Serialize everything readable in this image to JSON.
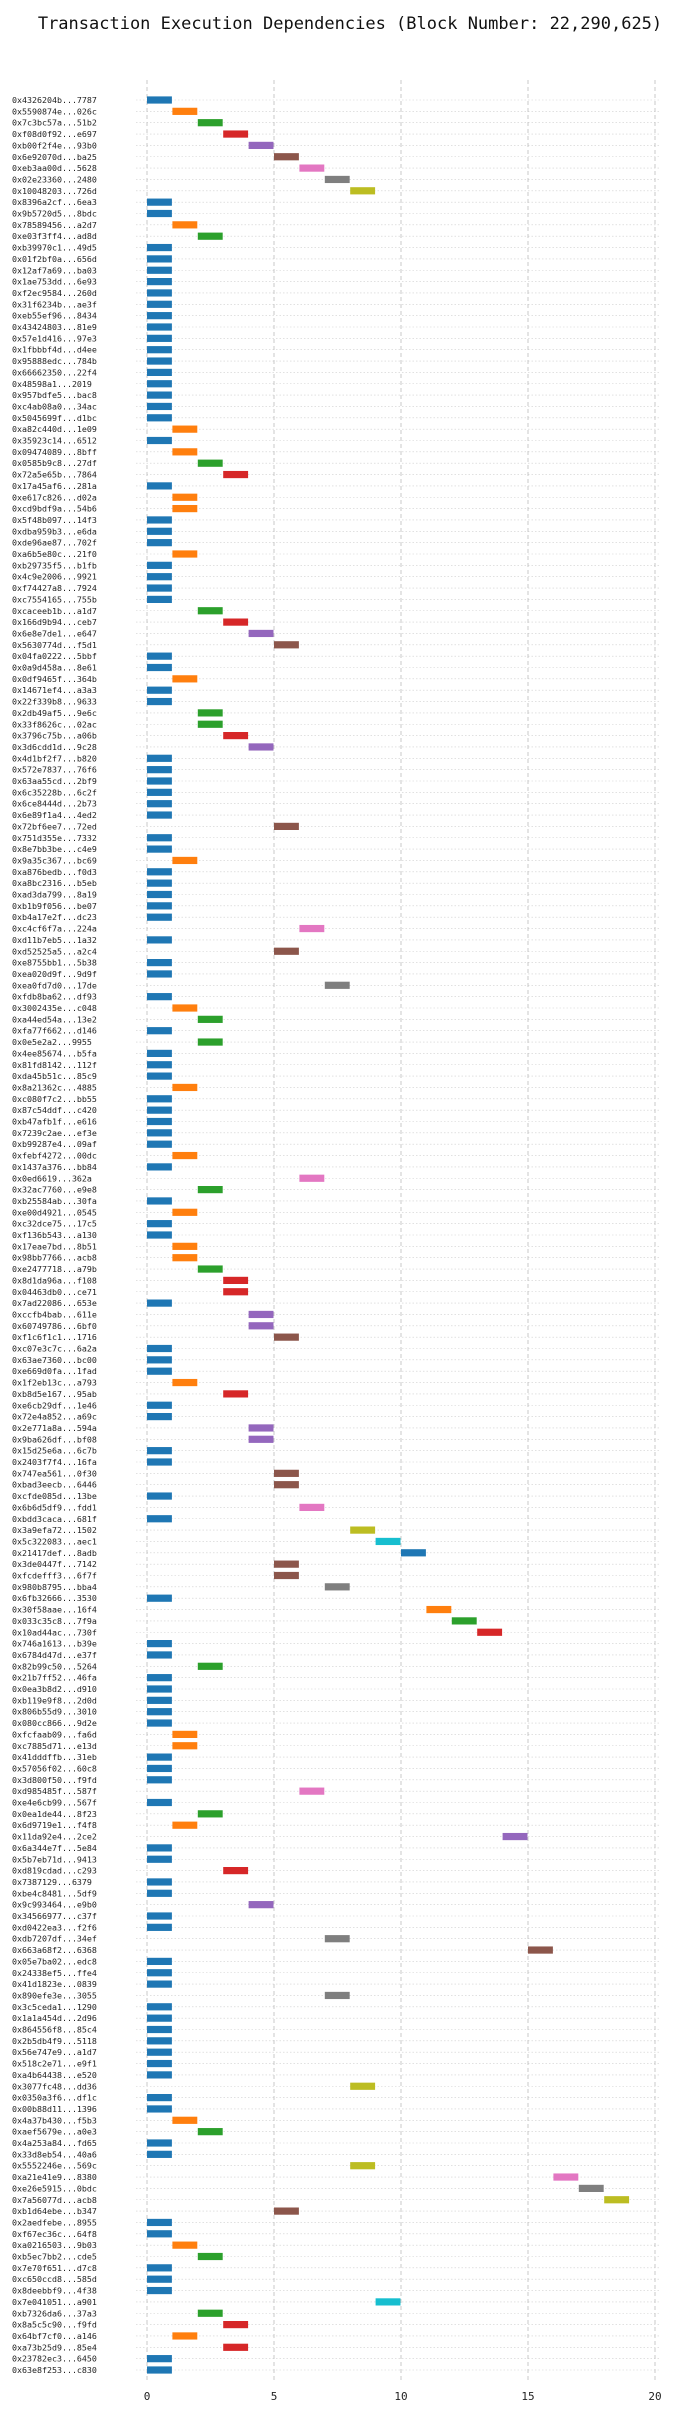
{
  "chart_data": {
    "type": "bar",
    "orientation": "horizontal",
    "title": "Transaction Execution Dependencies (Block Number: 22,290,625)",
    "xlabel": "",
    "ylabel": "",
    "xlim": [
      -0.5,
      20
    ],
    "xticks": [
      0,
      5,
      10,
      15,
      20
    ],
    "grid": "dashed vertical, dotted horizontal",
    "legend": "none",
    "palette": [
      "#1f77b4",
      "#ff7f0e",
      "#2ca02c",
      "#d62728",
      "#9467bd",
      "#8c564b",
      "#e377c2",
      "#7f7f7f",
      "#bcbd22",
      "#17becf"
    ],
    "transactions": [
      {
        "label": "0x4326204b...7787",
        "start": 0
      },
      {
        "label": "0x5590874e...026c",
        "start": 1
      },
      {
        "label": "0x7c3bc57a...51b2",
        "start": 2
      },
      {
        "label": "0xf08d0f92...e697",
        "start": 3
      },
      {
        "label": "0xb00f2f4e...93b0",
        "start": 4
      },
      {
        "label": "0x6e92070d...ba25",
        "start": 5
      },
      {
        "label": "0xeb3aa00d...5628",
        "start": 6
      },
      {
        "label": "0x02e23360...2480",
        "start": 7
      },
      {
        "label": "0x10048203...726d",
        "start": 8
      },
      {
        "label": "0x8396a2cf...6ea3",
        "start": 0
      },
      {
        "label": "0x9b5720d5...8bdc",
        "start": 0
      },
      {
        "label": "0x78589456...a2d7",
        "start": 1
      },
      {
        "label": "0xe03f3ff4...ad8d",
        "start": 2
      },
      {
        "label": "0xb39970c1...49d5",
        "start": 0
      },
      {
        "label": "0x01f2bf0a...656d",
        "start": 0
      },
      {
        "label": "0x12af7a69...ba03",
        "start": 0
      },
      {
        "label": "0x1ae753dd...6e93",
        "start": 0
      },
      {
        "label": "0xf2ec9584...260d",
        "start": 0
      },
      {
        "label": "0x31f6234b...ae3f",
        "start": 0
      },
      {
        "label": "0xeb55ef96...8434",
        "start": 0
      },
      {
        "label": "0x43424803...81e9",
        "start": 0
      },
      {
        "label": "0x57e1d416...97e3",
        "start": 0
      },
      {
        "label": "0x1fbbbf4d...d4ee",
        "start": 0
      },
      {
        "label": "0x95888edc...784b",
        "start": 0
      },
      {
        "label": "0x66662350...22f4",
        "start": 0
      },
      {
        "label": "0x48598a1...2019",
        "start": 0
      },
      {
        "label": "0x957bdfe5...bac8",
        "start": 0
      },
      {
        "label": "0xc4ab08a0...34ac",
        "start": 0
      },
      {
        "label": "0x5045699f...d1bc",
        "start": 0
      },
      {
        "label": "0xa82c440d...1e09",
        "start": 1
      },
      {
        "label": "0x35923c14...6512",
        "start": 0
      },
      {
        "label": "0x09474089...8bff",
        "start": 1
      },
      {
        "label": "0x0585b9c8...27df",
        "start": 2
      },
      {
        "label": "0x72a5e65b...7864",
        "start": 3
      },
      {
        "label": "0x17a45af6...281a",
        "start": 0
      },
      {
        "label": "0xe617c826...d02a",
        "start": 1
      },
      {
        "label": "0xcd9bdf9a...54b6",
        "start": 1
      },
      {
        "label": "0x5f48b097...14f3",
        "start": 0
      },
      {
        "label": "0xdba959b3...e6da",
        "start": 0
      },
      {
        "label": "0xde96ae87...702f",
        "start": 0
      },
      {
        "label": "0xa6b5e80c...21f0",
        "start": 1
      },
      {
        "label": "0xb29735f5...b1fb",
        "start": 0
      },
      {
        "label": "0x4c9e2006...9921",
        "start": 0
      },
      {
        "label": "0xf74427a8...7924",
        "start": 0
      },
      {
        "label": "0xc7554165...755b",
        "start": 0
      },
      {
        "label": "0xcaceeb1b...a1d7",
        "start": 2
      },
      {
        "label": "0x166d9b94...ceb7",
        "start": 3
      },
      {
        "label": "0x6e8e7de1...e647",
        "start": 4
      },
      {
        "label": "0x5630774d...f5d1",
        "start": 5
      },
      {
        "label": "0x04fa0222...5bbf",
        "start": 0
      },
      {
        "label": "0x0a9d458a...8e61",
        "start": 0
      },
      {
        "label": "0x0df9465f...364b",
        "start": 1
      },
      {
        "label": "0x14671ef4...a3a3",
        "start": 0
      },
      {
        "label": "0x22f339b8...9633",
        "start": 0
      },
      {
        "label": "0x2db49af5...9e6c",
        "start": 2
      },
      {
        "label": "0x33f8626c...02ac",
        "start": 2
      },
      {
        "label": "0x3796c75b...a06b",
        "start": 3
      },
      {
        "label": "0x3d6cdd1d...9c28",
        "start": 4
      },
      {
        "label": "0x4d1bf2f7...b820",
        "start": 0
      },
      {
        "label": "0x572e7837...76f6",
        "start": 0
      },
      {
        "label": "0x63aa55cd...2bf9",
        "start": 0
      },
      {
        "label": "0x6c35228b...6c2f",
        "start": 0
      },
      {
        "label": "0x6ce8444d...2b73",
        "start": 0
      },
      {
        "label": "0x6e89f1a4...4ed2",
        "start": 0
      },
      {
        "label": "0x72bf6ee7...72ed",
        "start": 5
      },
      {
        "label": "0x751d355e...7332",
        "start": 0
      },
      {
        "label": "0x8e7bb3be...c4e9",
        "start": 0
      },
      {
        "label": "0x9a35c367...bc69",
        "start": 1
      },
      {
        "label": "0xa876bedb...f0d3",
        "start": 0
      },
      {
        "label": "0xa8bc2316...b5eb",
        "start": 0
      },
      {
        "label": "0xad3da799...8a19",
        "start": 0
      },
      {
        "label": "0xb1b9f056...be07",
        "start": 0
      },
      {
        "label": "0xb4a17e2f...dc23",
        "start": 0
      },
      {
        "label": "0xc4cf6f7a...224a",
        "start": 6
      },
      {
        "label": "0xd11b7eb5...1a32",
        "start": 0
      },
      {
        "label": "0xd52525a5...a2c4",
        "start": 5
      },
      {
        "label": "0xe8755bb1...5b38",
        "start": 0
      },
      {
        "label": "0xea020d9f...9d9f",
        "start": 0
      },
      {
        "label": "0xea0fd7d0...17de",
        "start": 7
      },
      {
        "label": "0xfdb8ba62...df93",
        "start": 0
      },
      {
        "label": "0x3002435e...c048",
        "start": 1
      },
      {
        "label": "0xa44ed54a...13e2",
        "start": 2
      },
      {
        "label": "0xfa77f662...d146",
        "start": 0
      },
      {
        "label": "0x0e5e2a2...9955",
        "start": 2
      },
      {
        "label": "0x4ee85674...b5fa",
        "start": 0
      },
      {
        "label": "0x81fd8142...112f",
        "start": 0
      },
      {
        "label": "0xda45b51c...85c9",
        "start": 0
      },
      {
        "label": "0x8a21362c...4885",
        "start": 1
      },
      {
        "label": "0xc080f7c2...bb55",
        "start": 0
      },
      {
        "label": "0x87c54ddf...c420",
        "start": 0
      },
      {
        "label": "0xb47afb1f...e616",
        "start": 0
      },
      {
        "label": "0x7239c2ae...ef3e",
        "start": 0
      },
      {
        "label": "0xb99287e4...09af",
        "start": 0
      },
      {
        "label": "0xfebf4272...00dc",
        "start": 1
      },
      {
        "label": "0x1437a376...bb84",
        "start": 0
      },
      {
        "label": "0x0ed6619...362a",
        "start": 6
      },
      {
        "label": "0x32ac7760...e9e8",
        "start": 2
      },
      {
        "label": "0xb25584ab...30fa",
        "start": 0
      },
      {
        "label": "0xe00d4921...0545",
        "start": 1
      },
      {
        "label": "0xc32dce75...17c5",
        "start": 0
      },
      {
        "label": "0xf136b543...a130",
        "start": 0
      },
      {
        "label": "0x17eae7bd...8b51",
        "start": 1
      },
      {
        "label": "0x98bb7766...acb8",
        "start": 1
      },
      {
        "label": "0xe2477718...a79b",
        "start": 2
      },
      {
        "label": "0x8d1da96a...f108",
        "start": 3
      },
      {
        "label": "0x04463db0...ce71",
        "start": 3
      },
      {
        "label": "0x7ad22086...653e",
        "start": 0
      },
      {
        "label": "0xccfb4bab...611e",
        "start": 4
      },
      {
        "label": "0x60749786...6bf0",
        "start": 4
      },
      {
        "label": "0xf1c6f1c1...1716",
        "start": 5
      },
      {
        "label": "0xc07e3c7c...6a2a",
        "start": 0
      },
      {
        "label": "0x63ae7360...bc00",
        "start": 0
      },
      {
        "label": "0xe669d0fa...1fad",
        "start": 0
      },
      {
        "label": "0x1f2eb13c...a793",
        "start": 1
      },
      {
        "label": "0xb8d5e167...95ab",
        "start": 3
      },
      {
        "label": "0xe6cb29df...1e46",
        "start": 0
      },
      {
        "label": "0x72e4a852...a69c",
        "start": 0
      },
      {
        "label": "0x2e771a8a...594a",
        "start": 4
      },
      {
        "label": "0x9ba626df...bf08",
        "start": 4
      },
      {
        "label": "0x15d25e6a...6c7b",
        "start": 0
      },
      {
        "label": "0x2403f7f4...16fa",
        "start": 0
      },
      {
        "label": "0x747ea561...0f30",
        "start": 5
      },
      {
        "label": "0xbad3eecb...6446",
        "start": 5
      },
      {
        "label": "0xcfde085d...13be",
        "start": 0
      },
      {
        "label": "0x6b6d5df9...fdd1",
        "start": 6
      },
      {
        "label": "0xbdd3caca...681f",
        "start": 0
      },
      {
        "label": "0x3a9efa72...1502",
        "start": 8
      },
      {
        "label": "0x5c322083...aec1",
        "start": 9
      },
      {
        "label": "0x21417def...8adb",
        "start": 10
      },
      {
        "label": "0x3de0447f...7142",
        "start": 5
      },
      {
        "label": "0xfcdefff3...6f7f",
        "start": 5
      },
      {
        "label": "0x980b8795...bba4",
        "start": 7
      },
      {
        "label": "0x6fb32666...3530",
        "start": 0
      },
      {
        "label": "0x30f58aae...16f4",
        "start": 11
      },
      {
        "label": "0x033c35c8...7f9a",
        "start": 12
      },
      {
        "label": "0x10ad44ac...730f",
        "start": 13
      },
      {
        "label": "0x746a1613...b39e",
        "start": 0
      },
      {
        "label": "0x6784d47d...e37f",
        "start": 0
      },
      {
        "label": "0x82b99c50...5264",
        "start": 2
      },
      {
        "label": "0x21b7ff52...46fa",
        "start": 0
      },
      {
        "label": "0x0ea3b8d2...d910",
        "start": 0
      },
      {
        "label": "0xb119e9f8...2d0d",
        "start": 0
      },
      {
        "label": "0x806b55d9...3010",
        "start": 0
      },
      {
        "label": "0x080cc866...9d2e",
        "start": 0
      },
      {
        "label": "0xfcfaab09...fa6d",
        "start": 1
      },
      {
        "label": "0xc7885d71...e13d",
        "start": 1
      },
      {
        "label": "0x41dddffb...31eb",
        "start": 0
      },
      {
        "label": "0x57056f02...60c8",
        "start": 0
      },
      {
        "label": "0x3d800f50...f9fd",
        "start": 0
      },
      {
        "label": "0xd985485f...587f",
        "start": 6
      },
      {
        "label": "0xe4e6cb99...567f",
        "start": 0
      },
      {
        "label": "0x0ea1de44...8f23",
        "start": 2
      },
      {
        "label": "0x6d9719e1...f4f8",
        "start": 1
      },
      {
        "label": "0x11da92e4...2ce2",
        "start": 14
      },
      {
        "label": "0x6a344e7f...5e84",
        "start": 0
      },
      {
        "label": "0x5b7eb71d...9413",
        "start": 0
      },
      {
        "label": "0xd819cdad...c293",
        "start": 3
      },
      {
        "label": "0x7387129...6379",
        "start": 0
      },
      {
        "label": "0xbe4c8481...5df9",
        "start": 0
      },
      {
        "label": "0x9c993464...e9b0",
        "start": 4
      },
      {
        "label": "0x34566977...c37f",
        "start": 0
      },
      {
        "label": "0xd0422ea3...f2f6",
        "start": 0
      },
      {
        "label": "0xdb7207df...34ef",
        "start": 7
      },
      {
        "label": "0x663a68f2...6368",
        "start": 15
      },
      {
        "label": "0x05e7ba02...edc8",
        "start": 0
      },
      {
        "label": "0x24338ef5...ffe4",
        "start": 0
      },
      {
        "label": "0x41d1823e...0839",
        "start": 0
      },
      {
        "label": "0x890efe3e...3055",
        "start": 7
      },
      {
        "label": "0x3c5ceda1...1290",
        "start": 0
      },
      {
        "label": "0x1a1a454d...2d96",
        "start": 0
      },
      {
        "label": "0x864556f8...85c4",
        "start": 0
      },
      {
        "label": "0x2b5db4f9...5118",
        "start": 0
      },
      {
        "label": "0x56e747e9...a1d7",
        "start": 0
      },
      {
        "label": "0x518c2e71...e9f1",
        "start": 0
      },
      {
        "label": "0xa4b64438...e520",
        "start": 0
      },
      {
        "label": "0x3077fc48...dd36",
        "start": 8
      },
      {
        "label": "0x0350a3f6...df1c",
        "start": 0
      },
      {
        "label": "0x00b88d11...1396",
        "start": 0
      },
      {
        "label": "0x4a37b430...f5b3",
        "start": 1
      },
      {
        "label": "0xaef5679e...a0e3",
        "start": 2
      },
      {
        "label": "0x4a253a84...fd65",
        "start": 0
      },
      {
        "label": "0x33d8eb54...40a6",
        "start": 0
      },
      {
        "label": "0x5552246e...569c",
        "start": 8
      },
      {
        "label": "0xa21e41e9...8380",
        "start": 16
      },
      {
        "label": "0xe26e5915...0bdc",
        "start": 17
      },
      {
        "label": "0x7a56077d...acb8",
        "start": 18
      },
      {
        "label": "0xb1d64ebe...b347",
        "start": 5
      },
      {
        "label": "0x2aedfebe...8955",
        "start": 0
      },
      {
        "label": "0xf67ec36c...64f8",
        "start": 0
      },
      {
        "label": "0xa0216503...9b03",
        "start": 1
      },
      {
        "label": "0xb5ec7bb2...cde5",
        "start": 2
      },
      {
        "label": "0x7e70f651...d7c8",
        "start": 0
      },
      {
        "label": "0xc650ccd8...585d",
        "start": 0
      },
      {
        "label": "0x8deebbf9...4f38",
        "start": 0
      },
      {
        "label": "0x7e041051...a901",
        "start": 9
      },
      {
        "label": "0xb7326da6...37a3",
        "start": 2
      },
      {
        "label": "0x8a5c5c90...f9fd",
        "start": 3
      },
      {
        "label": "0x64bf7cf0...a146",
        "start": 1
      },
      {
        "label": "0xa73b25d9...85e4",
        "start": 3
      },
      {
        "label": "0x23782ec3...6450",
        "start": 0
      },
      {
        "label": "0x63e8f253...c830",
        "start": 0
      }
    ]
  }
}
